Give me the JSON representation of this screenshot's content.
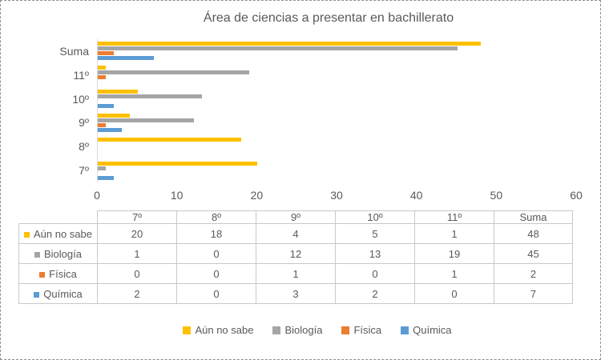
{
  "chart_data": {
    "type": "bar",
    "orientation": "horizontal",
    "title": "Área de ciencias a presentar en bachillerato",
    "y_categories_top_to_bottom": [
      "Suma",
      "11º",
      "10º",
      "9º",
      "8º",
      "7º"
    ],
    "columns": [
      "7º",
      "8º",
      "9º",
      "10º",
      "11º",
      "Suma"
    ],
    "series": [
      {
        "name": "Aún no sabe",
        "color": "#FFC000",
        "values": [
          20,
          18,
          4,
          5,
          1,
          48
        ]
      },
      {
        "name": "Biología",
        "color": "#A5A5A5",
        "values": [
          1,
          0,
          12,
          13,
          19,
          45
        ]
      },
      {
        "name": "Física",
        "color": "#ED7D31",
        "values": [
          0,
          0,
          1,
          0,
          1,
          2
        ]
      },
      {
        "name": "Química",
        "color": "#5B9BD5",
        "values": [
          2,
          0,
          3,
          2,
          0,
          7
        ]
      }
    ],
    "xlim": [
      0,
      60
    ],
    "xticks": [
      "0",
      "10",
      "20",
      "30",
      "40",
      "50",
      "60"
    ],
    "legend_position": "bottom",
    "grid": false,
    "text_color": "#595959",
    "axis_line_color": "#D9D9D9",
    "table_border_color": "#C9C9C9"
  }
}
